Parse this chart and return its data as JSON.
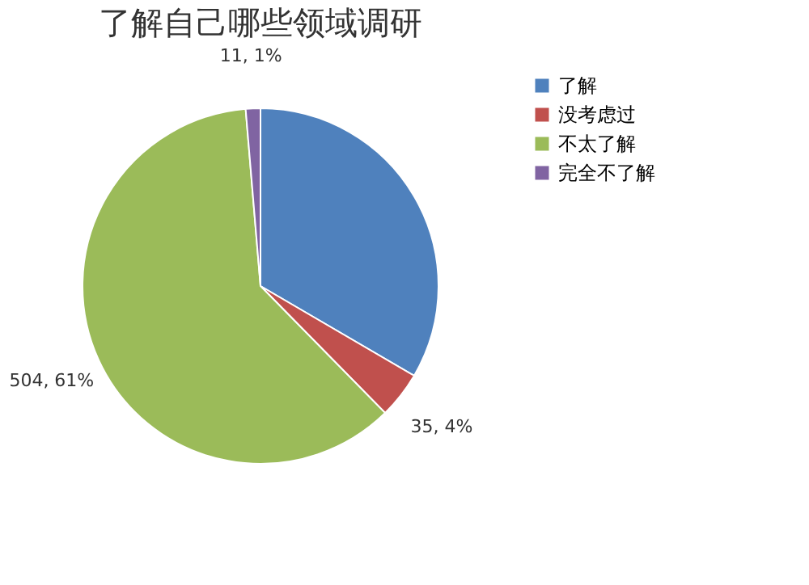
{
  "chart_data": {
    "type": "pie",
    "title": "了解自己哪些领域调研",
    "categories": [
      "了解",
      "没考虑过",
      "不太了解",
      "完全不了解"
    ],
    "values": [
      276,
      35,
      504,
      11
    ],
    "colors": [
      "#4f81bd",
      "#c0504d",
      "#9bbb59",
      "#8064a2"
    ],
    "value_labels": [
      null,
      "35, 4%",
      "504, 61%",
      "11, 1%"
    ],
    "legend": "right"
  }
}
